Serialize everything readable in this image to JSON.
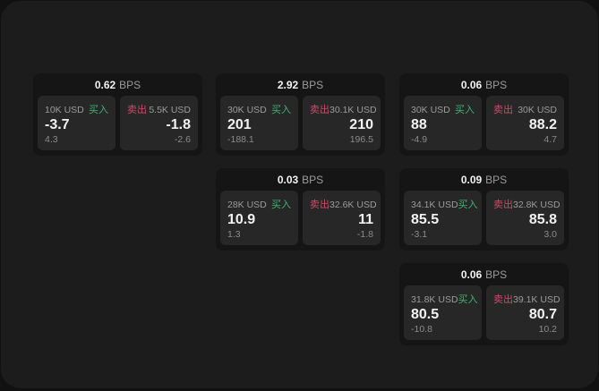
{
  "theme": {
    "outer_bg": "#111112",
    "panel_bg": "#1c1c1d",
    "card_bg": "#151516",
    "tile_bg": "#272728",
    "text_primary": "#f2f2f2",
    "text_muted": "#9b9b9b",
    "text_dim": "#8b8b8b",
    "buy_color": "#3fb46f",
    "sell_color": "#cf4a66"
  },
  "cards": [
    {
      "bps": "0.62",
      "unit": "BPS",
      "buy": {
        "amount": "10K USD",
        "label": "买入",
        "price": "-3.7",
        "delta": "4.3"
      },
      "sell": {
        "label": "卖出",
        "amount": "5.5K USD",
        "price": "-1.8",
        "delta": "-2.6"
      }
    },
    {
      "bps": "2.92",
      "unit": "BPS",
      "buy": {
        "amount": "30K USD",
        "label": "买入",
        "price": "201",
        "delta": "-188.1"
      },
      "sell": {
        "label": "卖出",
        "amount": "30.1K USD",
        "price": "210",
        "delta": "196.5"
      }
    },
    {
      "bps": "0.06",
      "unit": "BPS",
      "buy": {
        "amount": "30K USD",
        "label": "买入",
        "price": "88",
        "delta": "-4.9"
      },
      "sell": {
        "label": "卖出",
        "amount": "30K USD",
        "price": "88.2",
        "delta": "4.7"
      }
    },
    {
      "bps": "0.03",
      "unit": "BPS",
      "buy": {
        "amount": "28K USD",
        "label": "买入",
        "price": "10.9",
        "delta": "1.3"
      },
      "sell": {
        "label": "卖出",
        "amount": "32.6K USD",
        "price": "11",
        "delta": "-1.8"
      }
    },
    {
      "bps": "0.09",
      "unit": "BPS",
      "buy": {
        "amount": "34.1K USD",
        "label": "买入",
        "price": "85.5",
        "delta": "-3.1"
      },
      "sell": {
        "label": "卖出",
        "amount": "32.8K USD",
        "price": "85.8",
        "delta": "3.0"
      }
    },
    {
      "bps": "0.06",
      "unit": "BPS",
      "buy": {
        "amount": "31.8K USD",
        "label": "买入",
        "price": "80.5",
        "delta": "-10.8"
      },
      "sell": {
        "label": "卖出",
        "amount": "39.1K USD",
        "price": "80.7",
        "delta": "10.2"
      }
    }
  ]
}
